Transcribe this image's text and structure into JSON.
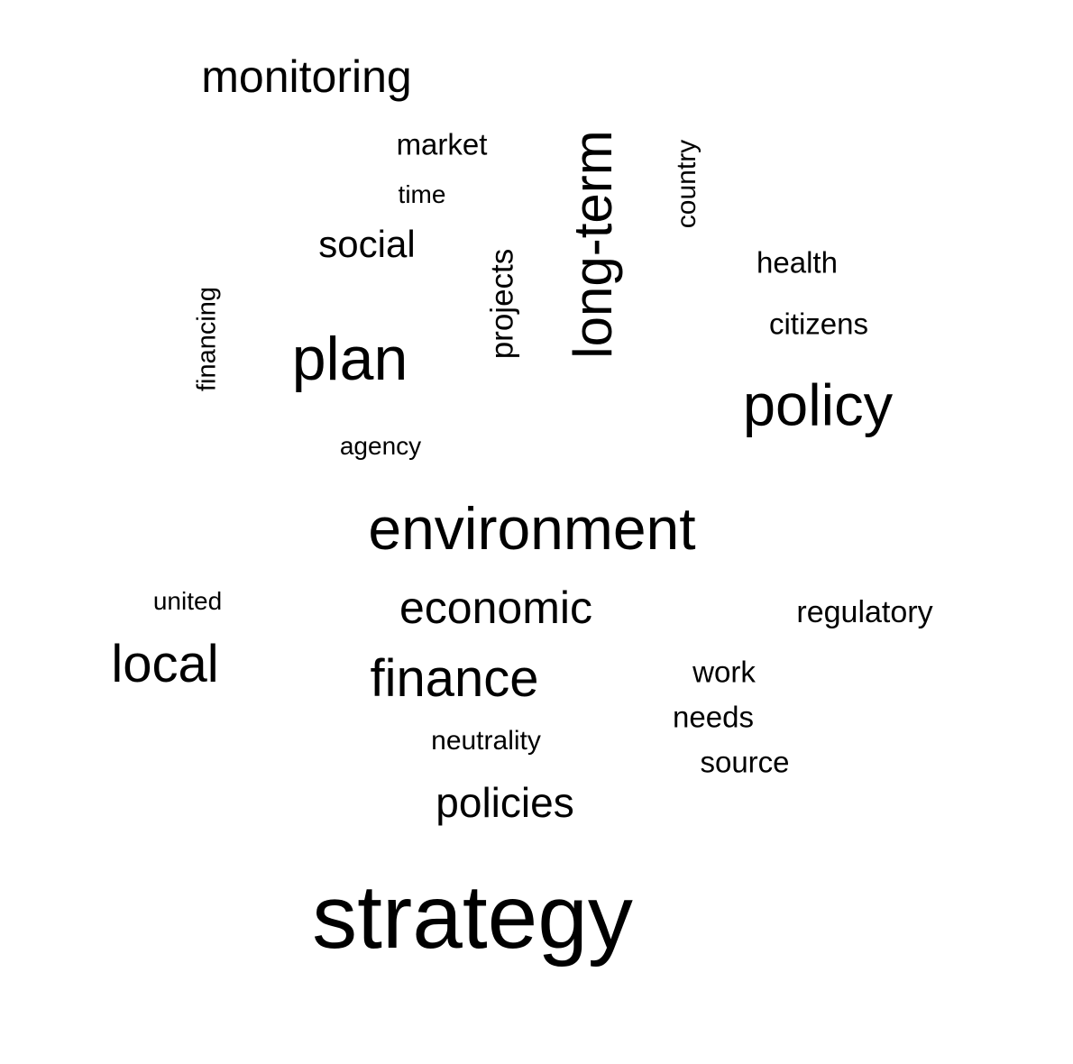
{
  "word_cloud": {
    "words": [
      {
        "key": "monitoring",
        "text": "monitoring",
        "orientation": "horizontal"
      },
      {
        "key": "market",
        "text": "market",
        "orientation": "horizontal"
      },
      {
        "key": "time",
        "text": "time",
        "orientation": "horizontal"
      },
      {
        "key": "social",
        "text": "social",
        "orientation": "horizontal"
      },
      {
        "key": "plan",
        "text": "plan",
        "orientation": "horizontal"
      },
      {
        "key": "agency",
        "text": "agency",
        "orientation": "horizontal"
      },
      {
        "key": "financing",
        "text": "financing",
        "orientation": "vertical"
      },
      {
        "key": "projects",
        "text": "projects",
        "orientation": "vertical"
      },
      {
        "key": "long_term",
        "text": "long-term",
        "orientation": "vertical"
      },
      {
        "key": "country",
        "text": "country",
        "orientation": "vertical"
      },
      {
        "key": "health",
        "text": "health",
        "orientation": "horizontal"
      },
      {
        "key": "citizens",
        "text": "citizens",
        "orientation": "horizontal"
      },
      {
        "key": "policy",
        "text": "policy",
        "orientation": "horizontal"
      },
      {
        "key": "environment",
        "text": "environment",
        "orientation": "horizontal"
      },
      {
        "key": "united",
        "text": "united",
        "orientation": "horizontal"
      },
      {
        "key": "economic",
        "text": "economic",
        "orientation": "horizontal"
      },
      {
        "key": "regulatory",
        "text": "regulatory",
        "orientation": "horizontal"
      },
      {
        "key": "local",
        "text": "local",
        "orientation": "horizontal"
      },
      {
        "key": "finance",
        "text": "finance",
        "orientation": "horizontal"
      },
      {
        "key": "work",
        "text": "work",
        "orientation": "horizontal"
      },
      {
        "key": "needs",
        "text": "needs",
        "orientation": "horizontal"
      },
      {
        "key": "neutrality",
        "text": "neutrality",
        "orientation": "horizontal"
      },
      {
        "key": "source",
        "text": "source",
        "orientation": "horizontal"
      },
      {
        "key": "policies",
        "text": "policies",
        "orientation": "horizontal"
      },
      {
        "key": "strategy",
        "text": "strategy",
        "orientation": "horizontal"
      }
    ],
    "text_color": "#000000",
    "background_color": "#ffffff"
  }
}
